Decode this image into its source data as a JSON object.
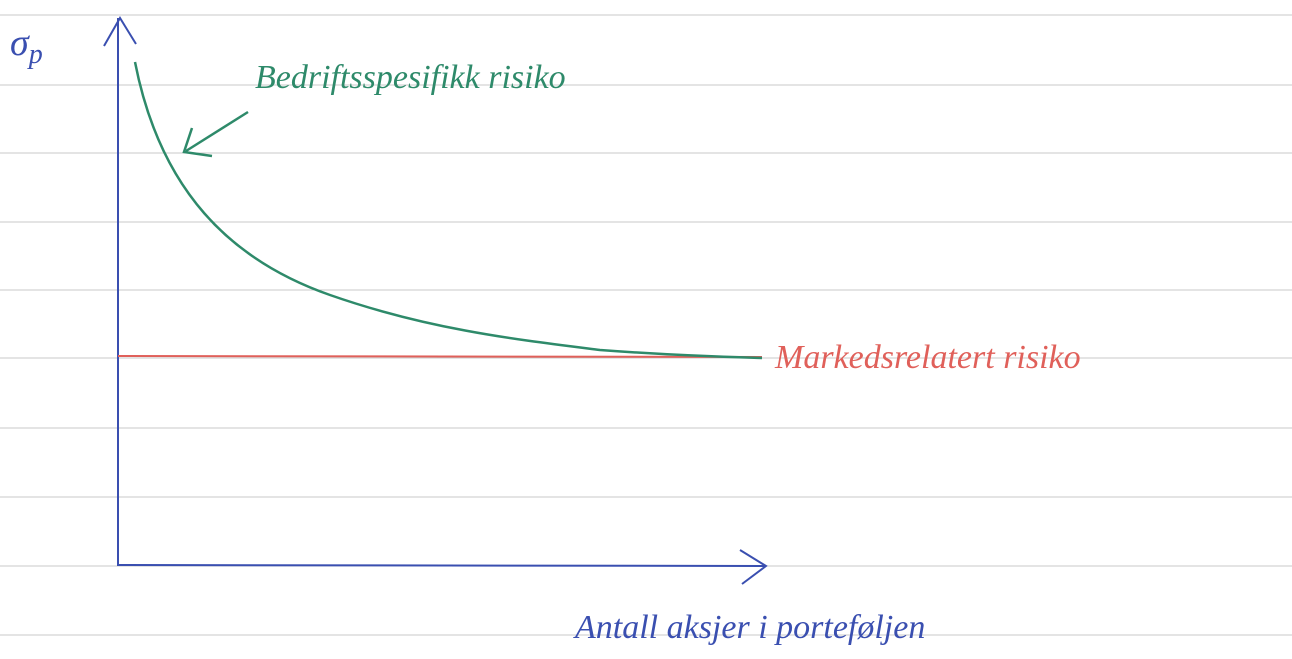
{
  "y_axis": {
    "symbol": "σ",
    "subscript": "p"
  },
  "x_axis": {
    "label": "Antall aksjer i porteføljen"
  },
  "curves": [
    {
      "label": "Bedriftsspesifikk risiko"
    },
    {
      "label": "Markedsrelatert risiko"
    }
  ]
}
